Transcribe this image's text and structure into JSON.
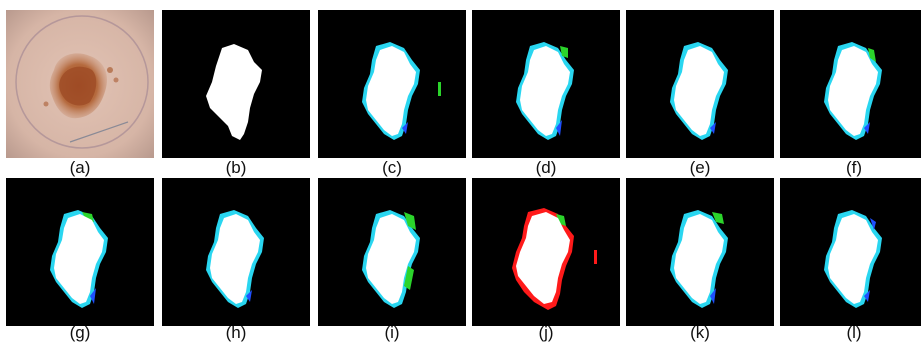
{
  "figure": {
    "panels": [
      {
        "label": "(a)",
        "kind": "dermoscopy"
      },
      {
        "label": "(b)",
        "kind": "mask"
      },
      {
        "label": "(c)",
        "kind": "overlay",
        "variant": "c"
      },
      {
        "label": "(d)",
        "kind": "overlay",
        "variant": "d"
      },
      {
        "label": "(e)",
        "kind": "overlay",
        "variant": "e"
      },
      {
        "label": "(f)",
        "kind": "overlay",
        "variant": "f"
      },
      {
        "label": "(g)",
        "kind": "overlay",
        "variant": "g"
      },
      {
        "label": "(h)",
        "kind": "overlay",
        "variant": "h"
      },
      {
        "label": "(i)",
        "kind": "overlay",
        "variant": "i"
      },
      {
        "label": "(j)",
        "kind": "overlay",
        "variant": "j"
      },
      {
        "label": "(k)",
        "kind": "overlay",
        "variant": "k"
      },
      {
        "label": "(l)",
        "kind": "overlay",
        "variant": "l"
      }
    ],
    "colors": {
      "background": "#000000",
      "lesion": "#ffffff",
      "cyan": "#29d6f0",
      "blue": "#1f4fff",
      "green": "#2bd42b",
      "red": "#ff1a1a"
    }
  }
}
